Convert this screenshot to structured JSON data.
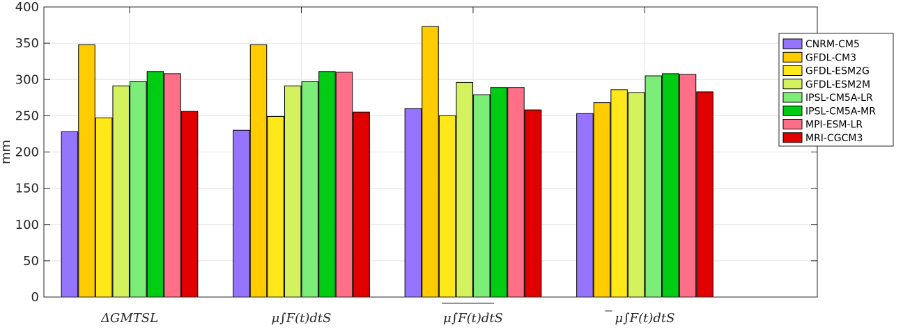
{
  "chart_data": {
    "type": "bar",
    "categories": [
      "ΔGMTSL",
      "μ∫F(t)dtS",
      "μ∫F(t)dtS",
      "μ∫F(t)dtS"
    ],
    "series": [
      {
        "name": "CNRM-CM5",
        "color": "#9575ff",
        "values": [
          228,
          230,
          260,
          253
        ]
      },
      {
        "name": "GFDL-CM3",
        "color": "#ffcc00",
        "values": [
          348,
          348,
          373,
          268
        ]
      },
      {
        "name": "GFDL-ESM2G",
        "color": "#ffe81a",
        "values": [
          247,
          249,
          250,
          286
        ]
      },
      {
        "name": "GFDL-ESM2M",
        "color": "#d4f25e",
        "values": [
          291,
          291,
          296,
          282
        ]
      },
      {
        "name": "IPSL-CM5A-LR",
        "color": "#7ded7a",
        "values": [
          297,
          297,
          279,
          305
        ]
      },
      {
        "name": "IPSL-CM5A-MR",
        "color": "#00cc14",
        "values": [
          311,
          311,
          289,
          308
        ]
      },
      {
        "name": "MPI-ESM-LR",
        "color": "#ff7088",
        "values": [
          308,
          310,
          289,
          307
        ]
      },
      {
        "name": "MRI-CGCM3",
        "color": "#e00000",
        "values": [
          256,
          255,
          258,
          283
        ]
      }
    ],
    "ylabel": "mm",
    "ylim": [
      0,
      400
    ],
    "yticks": [
      0,
      50,
      100,
      150,
      200,
      250,
      300,
      350,
      400
    ],
    "grid": true,
    "legend_position": "top-right"
  }
}
